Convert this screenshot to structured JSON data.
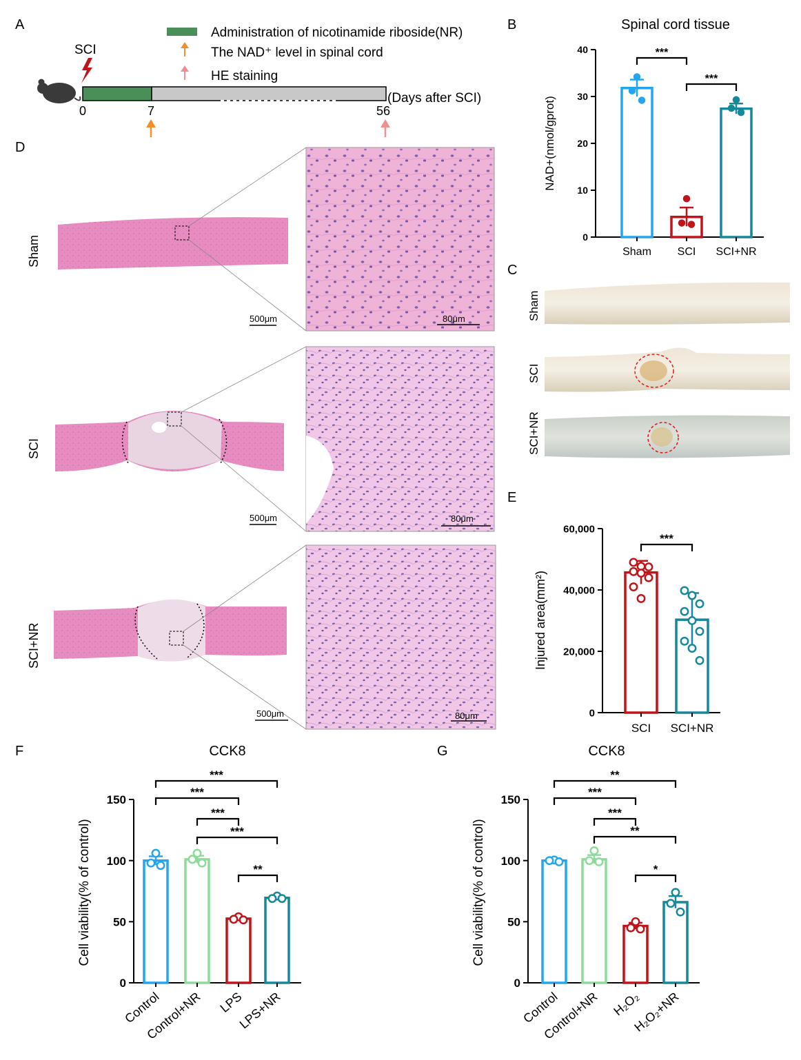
{
  "panel_labels": {
    "A": "A",
    "B": "B",
    "C": "C",
    "D": "D",
    "E": "E",
    "F": "F",
    "G": "G"
  },
  "timeline": {
    "legend": [
      {
        "label": "Administration of nicotinamide riboside(NR)",
        "color": "#4a8f58",
        "kind": "bar"
      },
      {
        "label": "The NAD⁺ level in spinal cord",
        "color": "#f0902a",
        "kind": "arrow"
      },
      {
        "label": "HE staining",
        "color": "#f08f8f",
        "kind": "arrow"
      }
    ],
    "event_label": "SCI",
    "ticks": [
      "0",
      "7",
      "56"
    ],
    "axis_label": "(Days after SCI)",
    "treatment_color": "#4a8f58",
    "rest_color": "#c8c8c8"
  },
  "histology": {
    "rows": [
      "Sham",
      "SCI",
      "SCI+NR"
    ],
    "scale_low": "500μm",
    "scale_high": "80μm"
  },
  "gross": {
    "rows": [
      "Sham",
      "SCI",
      "SCI+NR"
    ]
  },
  "chart_data": [
    {
      "id": "B",
      "type": "bar",
      "title": "Spinal cord tissue",
      "ylabel": "NAD+(nmol/gprot)",
      "ylim": [
        0,
        40
      ],
      "yticks": [
        "0",
        "10",
        "20",
        "30",
        "40"
      ],
      "categories": [
        "Sham",
        "SCI",
        "SCI+NR"
      ],
      "values": [
        31.8,
        4.3,
        27.4
      ],
      "errors": [
        1.8,
        2.0,
        1.1
      ],
      "points": [
        [
          34.2,
          31.2,
          29.2
        ],
        [
          8.2,
          3.0,
          2.7
        ],
        [
          29.3,
          27.5,
          26.6
        ]
      ],
      "colors": [
        "#23a6ef",
        "#c0141a",
        "#17879a"
      ],
      "markers": "filled",
      "sig": [
        {
          "a": 0,
          "b": 1,
          "label": "***"
        },
        {
          "a": 1,
          "b": 2,
          "label": "***"
        }
      ]
    },
    {
      "id": "E",
      "type": "bar",
      "title": "",
      "ylabel": "Injured area(mm²)",
      "ylim": [
        0,
        60000
      ],
      "yticks": [
        "0",
        "20,000",
        "40,000",
        "60,000"
      ],
      "categories": [
        "SCI",
        "SCI+NR"
      ],
      "values": [
        45700,
        30300
      ],
      "errors": [
        3800,
        8700
      ],
      "points": [
        [
          49000,
          47700,
          47500,
          46000,
          45500,
          44000,
          41000,
          37200
        ],
        [
          39800,
          38200,
          35500,
          33000,
          30000,
          26500,
          23300,
          21000,
          17000
        ]
      ],
      "colors": [
        "#c0141a",
        "#17879a"
      ],
      "markers": "open",
      "sig": [
        {
          "a": 0,
          "b": 1,
          "label": "***"
        }
      ]
    },
    {
      "id": "F",
      "type": "bar",
      "title": "CCK8",
      "ylabel": "Cell viability(% of control)",
      "ylim": [
        0,
        150
      ],
      "yticks": [
        "0",
        "50",
        "100",
        "150"
      ],
      "categories": [
        "Control",
        "Control+NR",
        "LPS",
        "LPS+NR"
      ],
      "values": [
        100,
        101,
        52.5,
        69.5
      ],
      "errors": [
        3.5,
        3.0,
        1.3,
        1.2
      ],
      "points": [
        [
          106,
          98,
          96
        ],
        [
          106,
          101,
          98
        ],
        [
          54,
          52,
          51.5
        ],
        [
          71,
          69,
          69
        ]
      ],
      "colors": [
        "#23a6ef",
        "#8ddb9b",
        "#c0141a",
        "#17879a"
      ],
      "markers": "open",
      "sig": [
        {
          "a": 0,
          "b": 2,
          "label": "***"
        },
        {
          "a": 0,
          "b": 3,
          "label": "***"
        },
        {
          "a": 1,
          "b": 2,
          "label": "***"
        },
        {
          "a": 1,
          "b": 3,
          "label": "***"
        },
        {
          "a": 2,
          "b": 3,
          "label": "**"
        }
      ]
    },
    {
      "id": "G",
      "type": "bar",
      "title": "CCK8",
      "ylabel": "Cell viability(% of control)",
      "ylim": [
        0,
        150
      ],
      "yticks": [
        "0",
        "50",
        "100",
        "150"
      ],
      "categories": [
        "Control",
        "Control+NR",
        "H₂O₂",
        "H₂O₂+NR"
      ],
      "values": [
        100,
        101,
        46.5,
        66
      ],
      "errors": [
        1.8,
        3.5,
        2.6,
        5.0
      ],
      "points": [
        [
          100.5,
          100,
          99
        ],
        [
          108,
          100,
          99
        ],
        [
          50,
          45,
          44
        ],
        [
          74,
          65,
          58
        ]
      ],
      "colors": [
        "#23a6ef",
        "#8ddb9b",
        "#c0141a",
        "#17879a"
      ],
      "markers": "open",
      "sig": [
        {
          "a": 0,
          "b": 2,
          "label": "***"
        },
        {
          "a": 0,
          "b": 3,
          "label": "**"
        },
        {
          "a": 1,
          "b": 2,
          "label": "***"
        },
        {
          "a": 1,
          "b": 3,
          "label": "**"
        },
        {
          "a": 2,
          "b": 3,
          "label": "*"
        }
      ]
    }
  ]
}
